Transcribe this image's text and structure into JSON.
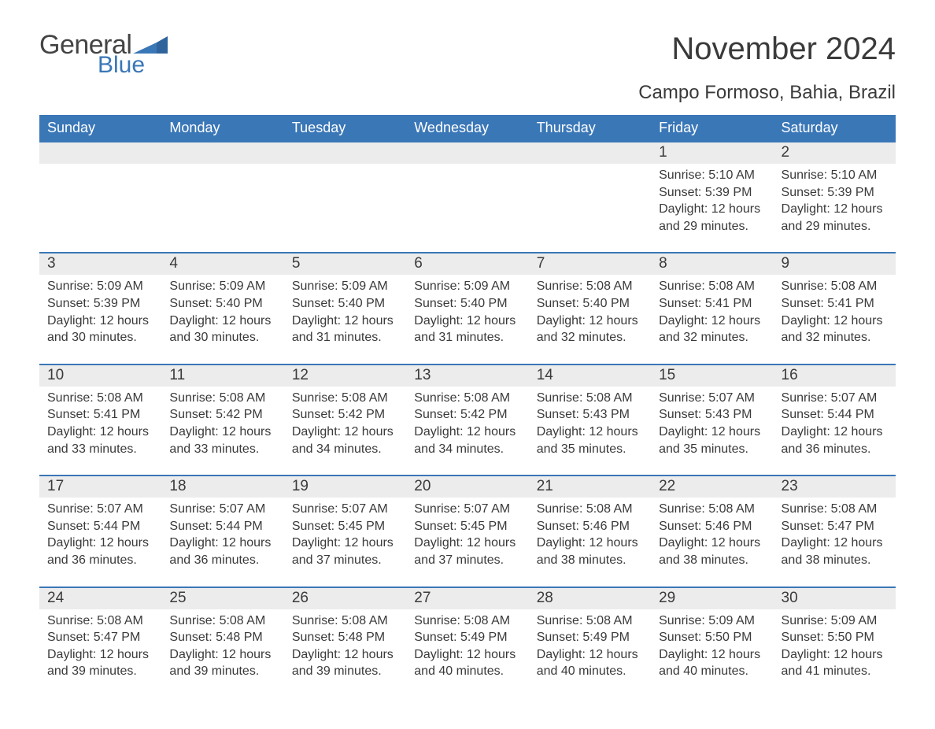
{
  "brand": {
    "word1": "General",
    "word2": "Blue",
    "flag_color": "#3a77b7"
  },
  "title": "November 2024",
  "location": "Campo Formoso, Bahia, Brazil",
  "colors": {
    "header_bg": "#3a77b7",
    "header_text": "#ffffff",
    "daynum_bg": "#ececec",
    "row_border": "#3a77b7",
    "body_text": "#3a3a3a",
    "page_bg": "#ffffff"
  },
  "fonts": {
    "title_size": 40,
    "subtitle_size": 24,
    "header_size": 18,
    "daynum_size": 19,
    "body_size": 16
  },
  "weekdays": [
    "Sunday",
    "Monday",
    "Tuesday",
    "Wednesday",
    "Thursday",
    "Friday",
    "Saturday"
  ],
  "weeks": [
    [
      null,
      null,
      null,
      null,
      null,
      {
        "n": "1",
        "sr": "5:10 AM",
        "ss": "5:39 PM",
        "dl": "12 hours and 29 minutes."
      },
      {
        "n": "2",
        "sr": "5:10 AM",
        "ss": "5:39 PM",
        "dl": "12 hours and 29 minutes."
      }
    ],
    [
      {
        "n": "3",
        "sr": "5:09 AM",
        "ss": "5:39 PM",
        "dl": "12 hours and 30 minutes."
      },
      {
        "n": "4",
        "sr": "5:09 AM",
        "ss": "5:40 PM",
        "dl": "12 hours and 30 minutes."
      },
      {
        "n": "5",
        "sr": "5:09 AM",
        "ss": "5:40 PM",
        "dl": "12 hours and 31 minutes."
      },
      {
        "n": "6",
        "sr": "5:09 AM",
        "ss": "5:40 PM",
        "dl": "12 hours and 31 minutes."
      },
      {
        "n": "7",
        "sr": "5:08 AM",
        "ss": "5:40 PM",
        "dl": "12 hours and 32 minutes."
      },
      {
        "n": "8",
        "sr": "5:08 AM",
        "ss": "5:41 PM",
        "dl": "12 hours and 32 minutes."
      },
      {
        "n": "9",
        "sr": "5:08 AM",
        "ss": "5:41 PM",
        "dl": "12 hours and 32 minutes."
      }
    ],
    [
      {
        "n": "10",
        "sr": "5:08 AM",
        "ss": "5:41 PM",
        "dl": "12 hours and 33 minutes."
      },
      {
        "n": "11",
        "sr": "5:08 AM",
        "ss": "5:42 PM",
        "dl": "12 hours and 33 minutes."
      },
      {
        "n": "12",
        "sr": "5:08 AM",
        "ss": "5:42 PM",
        "dl": "12 hours and 34 minutes."
      },
      {
        "n": "13",
        "sr": "5:08 AM",
        "ss": "5:42 PM",
        "dl": "12 hours and 34 minutes."
      },
      {
        "n": "14",
        "sr": "5:08 AM",
        "ss": "5:43 PM",
        "dl": "12 hours and 35 minutes."
      },
      {
        "n": "15",
        "sr": "5:07 AM",
        "ss": "5:43 PM",
        "dl": "12 hours and 35 minutes."
      },
      {
        "n": "16",
        "sr": "5:07 AM",
        "ss": "5:44 PM",
        "dl": "12 hours and 36 minutes."
      }
    ],
    [
      {
        "n": "17",
        "sr": "5:07 AM",
        "ss": "5:44 PM",
        "dl": "12 hours and 36 minutes."
      },
      {
        "n": "18",
        "sr": "5:07 AM",
        "ss": "5:44 PM",
        "dl": "12 hours and 36 minutes."
      },
      {
        "n": "19",
        "sr": "5:07 AM",
        "ss": "5:45 PM",
        "dl": "12 hours and 37 minutes."
      },
      {
        "n": "20",
        "sr": "5:07 AM",
        "ss": "5:45 PM",
        "dl": "12 hours and 37 minutes."
      },
      {
        "n": "21",
        "sr": "5:08 AM",
        "ss": "5:46 PM",
        "dl": "12 hours and 38 minutes."
      },
      {
        "n": "22",
        "sr": "5:08 AM",
        "ss": "5:46 PM",
        "dl": "12 hours and 38 minutes."
      },
      {
        "n": "23",
        "sr": "5:08 AM",
        "ss": "5:47 PM",
        "dl": "12 hours and 38 minutes."
      }
    ],
    [
      {
        "n": "24",
        "sr": "5:08 AM",
        "ss": "5:47 PM",
        "dl": "12 hours and 39 minutes."
      },
      {
        "n": "25",
        "sr": "5:08 AM",
        "ss": "5:48 PM",
        "dl": "12 hours and 39 minutes."
      },
      {
        "n": "26",
        "sr": "5:08 AM",
        "ss": "5:48 PM",
        "dl": "12 hours and 39 minutes."
      },
      {
        "n": "27",
        "sr": "5:08 AM",
        "ss": "5:49 PM",
        "dl": "12 hours and 40 minutes."
      },
      {
        "n": "28",
        "sr": "5:08 AM",
        "ss": "5:49 PM",
        "dl": "12 hours and 40 minutes."
      },
      {
        "n": "29",
        "sr": "5:09 AM",
        "ss": "5:50 PM",
        "dl": "12 hours and 40 minutes."
      },
      {
        "n": "30",
        "sr": "5:09 AM",
        "ss": "5:50 PM",
        "dl": "12 hours and 41 minutes."
      }
    ]
  ],
  "labels": {
    "sunrise": "Sunrise: ",
    "sunset": "Sunset: ",
    "daylight": "Daylight: "
  }
}
